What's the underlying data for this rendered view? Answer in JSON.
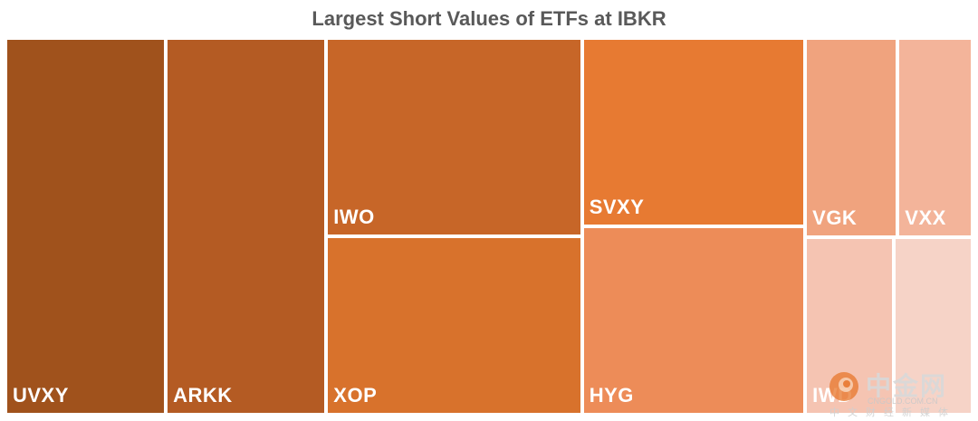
{
  "chart_data": {
    "type": "treemap",
    "title": "Largest Short Values of ETFs at IBKR",
    "items": [
      {
        "name": "UVXY",
        "value": 69,
        "color": "#a0521c"
      },
      {
        "name": "ARKK",
        "value": 69,
        "color": "#b45b23"
      },
      {
        "name": "IWO",
        "value": 58,
        "color": "#c76628"
      },
      {
        "name": "XOP",
        "value": 52,
        "color": "#d8722c"
      },
      {
        "name": "SVXY",
        "value": 48,
        "color": "#e77a32"
      },
      {
        "name": "HYG",
        "value": 48,
        "color": "#ed8c58"
      },
      {
        "name": "VGK",
        "value": 21,
        "color": "#f0a37e"
      },
      {
        "name": "VXX",
        "value": 17,
        "color": "#f3b49a"
      },
      {
        "name": "IWD",
        "value": 18,
        "color": "#f5c4b2"
      },
      {
        "name": "",
        "value": 16,
        "color": "#f6d3c7"
      }
    ]
  },
  "watermark": {
    "brand": "中金网",
    "url": "CNGOLD.COM.CN",
    "tagline": "中文财经新媒体"
  }
}
